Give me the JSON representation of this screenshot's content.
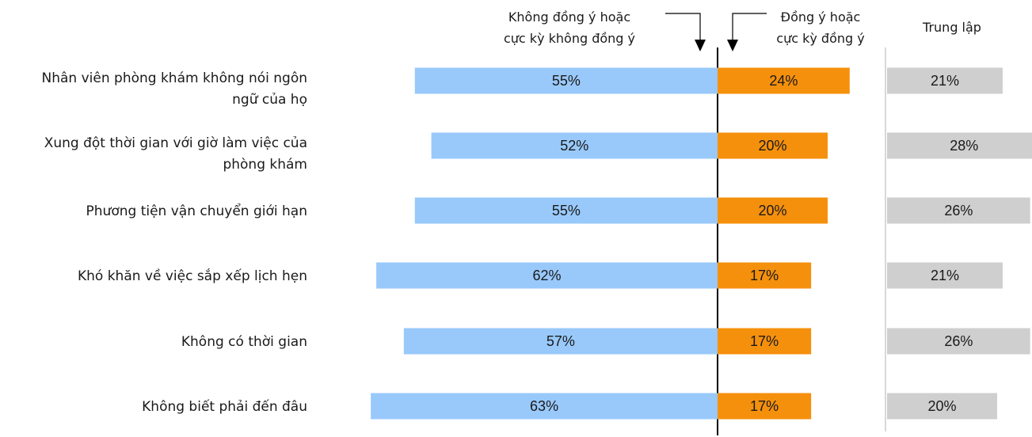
{
  "chart_data": {
    "type": "bar",
    "orientation": "horizontal-diverging",
    "categories": [
      [
        "Nhân viên phòng khám không nói ngôn",
        "ngữ của họ"
      ],
      [
        "Xung đột thời gian với giờ làm việc của",
        "phòng khám"
      ],
      [
        "Phương tiện vận chuyển giới hạn"
      ],
      [
        "Khó khăn về việc sắp xếp lịch hẹn"
      ],
      [
        "Không có thời gian"
      ],
      [
        "Không biết phải đến đâu"
      ]
    ],
    "series": [
      {
        "name": [
          "Không đồng ý hoặc",
          "cực kỳ không đồng ý"
        ],
        "color": "#99c9fb",
        "values": [
          55,
          52,
          55,
          62,
          57,
          63
        ],
        "labels": [
          "55%",
          "52%",
          "55%",
          "62%",
          "57%",
          "63%"
        ]
      },
      {
        "name": [
          "Đồng ý hoặc",
          "cực kỳ đồng ý"
        ],
        "color": "#f5900d",
        "values": [
          24,
          20,
          20,
          17,
          17,
          17
        ],
        "labels": [
          "24%",
          "20%",
          "20%",
          "17%",
          "17%",
          "17%"
        ]
      },
      {
        "name": [
          "Trung lập"
        ],
        "color": "#cfcfcf",
        "values": [
          21,
          28,
          26,
          21,
          26,
          20
        ],
        "labels": [
          "21%",
          "28%",
          "26%",
          "21%",
          "26%",
          "20%"
        ]
      }
    ],
    "colors": {
      "axis": "#000000",
      "divider": "#cccccc",
      "text": "#1a1a1a"
    },
    "grid": false,
    "legend": "top"
  }
}
